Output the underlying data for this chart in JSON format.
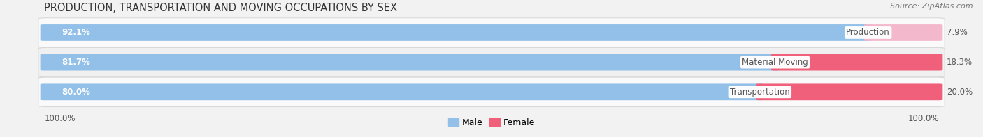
{
  "title": "PRODUCTION, TRANSPORTATION AND MOVING OCCUPATIONS BY SEX",
  "source": "Source: ZipAtlas.com",
  "categories": [
    "Production",
    "Material Moving",
    "Transportation"
  ],
  "male_values": [
    92.1,
    81.7,
    80.0
  ],
  "female_values": [
    7.9,
    18.3,
    20.0
  ],
  "male_color": "#92C0E8",
  "female_colors": [
    "#F4B8CC",
    "#F0607A",
    "#F0607A"
  ],
  "bg_color": "#f2f2f2",
  "row_colors": [
    "#fafafa",
    "#f0f0f0",
    "#fafafa"
  ],
  "row_border_color": "#d8d8d8",
  "male_label_color": "#ffffff",
  "female_label_color": "#555555",
  "category_label_color": "#555555",
  "left_axis_label": "100.0%",
  "right_axis_label": "100.0%",
  "legend_male": "Male",
  "legend_female": "Female",
  "legend_female_color": "#F0607A",
  "title_fontsize": 10.5,
  "source_fontsize": 8,
  "bar_label_fontsize": 8.5,
  "category_fontsize": 8.5,
  "axis_label_fontsize": 8.5,
  "legend_fontsize": 9
}
